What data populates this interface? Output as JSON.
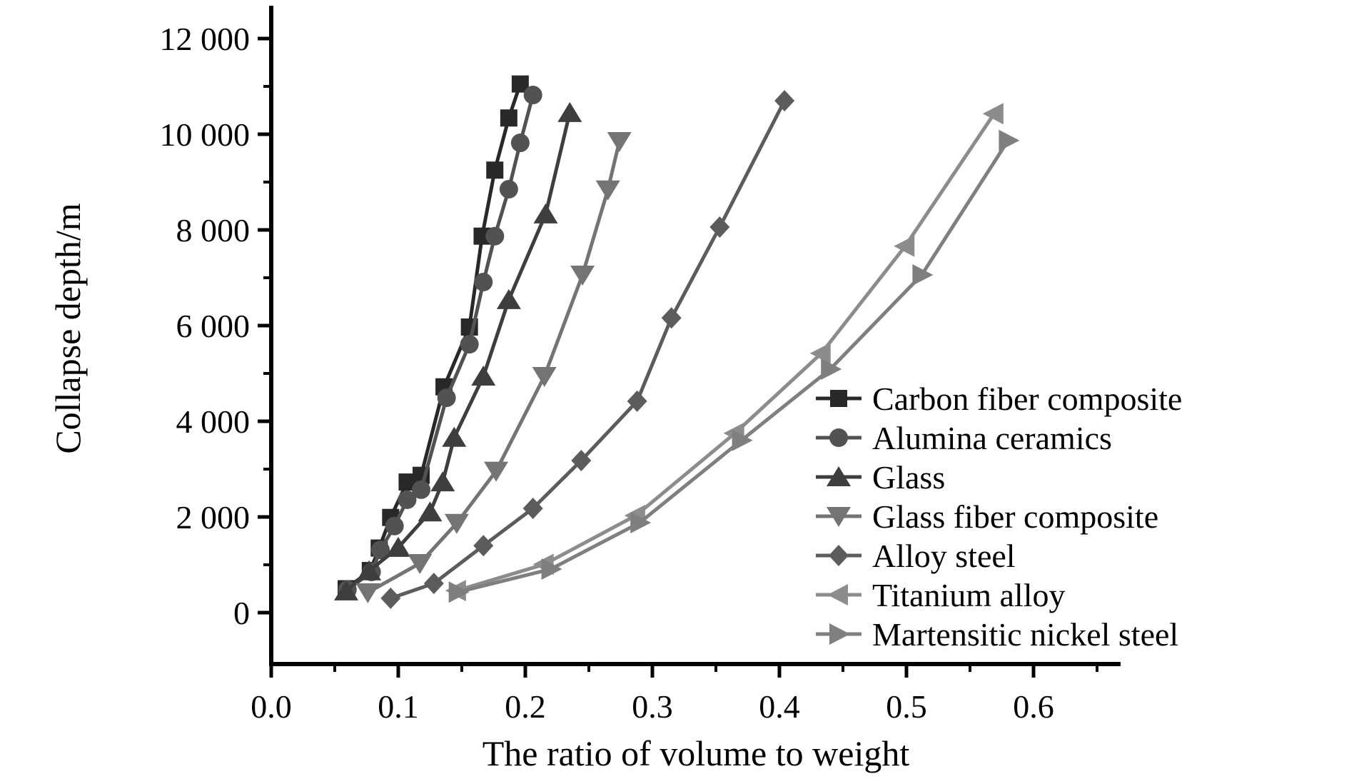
{
  "figure": {
    "background": "#ffffff",
    "axis_color": "#000000",
    "x_axis": {
      "title": "The ratio of volume to weight",
      "major_ticks": [
        0.0,
        0.1,
        0.2,
        0.3,
        0.4,
        0.5,
        0.6
      ],
      "tick_labels": [
        "0.0",
        "0.1",
        "0.2",
        "0.3",
        "0.4",
        "0.5",
        "0.6"
      ],
      "minor_ticks": [
        0.05,
        0.15,
        0.25,
        0.35,
        0.45,
        0.55,
        0.65
      ]
    },
    "y_axis": {
      "title": "Collapse depth/m",
      "major_ticks": [
        0,
        2000,
        4000,
        6000,
        8000,
        10000,
        12000
      ],
      "tick_labels": [
        "0",
        "2 000",
        "4 000",
        "6 000",
        "8 000",
        "10 000",
        "12 000"
      ],
      "minor_ticks": [
        1000,
        3000,
        5000,
        7000,
        9000,
        11000
      ]
    }
  },
  "chart_data": {
    "type": "line",
    "title": "",
    "xlabel": "The ratio of volume to weight",
    "ylabel": "Collapse depth/m",
    "xlim": [
      0.0,
      0.668
    ],
    "ylim": [
      -1075,
      12700
    ],
    "grid": false,
    "legend_position": "inside-right-middle",
    "series": [
      {
        "name": "Carbon fiber composite",
        "marker": "square",
        "color": "#282828",
        "points": [
          [
            0.059,
            500
          ],
          [
            0.078,
            880
          ],
          [
            0.085,
            1350
          ],
          [
            0.094,
            1990
          ],
          [
            0.107,
            2730
          ],
          [
            0.118,
            2870
          ],
          [
            0.136,
            4720
          ],
          [
            0.156,
            5970
          ],
          [
            0.166,
            7870
          ],
          [
            0.176,
            9250
          ],
          [
            0.187,
            10340
          ],
          [
            0.196,
            11050
          ]
        ]
      },
      {
        "name": "Alumina ceramics",
        "marker": "circle",
        "color": "#525252",
        "points": [
          [
            0.06,
            480
          ],
          [
            0.079,
            850
          ],
          [
            0.086,
            1310
          ],
          [
            0.097,
            1810
          ],
          [
            0.107,
            2360
          ],
          [
            0.118,
            2570
          ],
          [
            0.138,
            4490
          ],
          [
            0.156,
            5610
          ],
          [
            0.167,
            6910
          ],
          [
            0.176,
            7870
          ],
          [
            0.187,
            8850
          ],
          [
            0.196,
            9820
          ],
          [
            0.206,
            10820
          ]
        ]
      },
      {
        "name": "Glass",
        "marker": "triangle-up",
        "color": "#3e3e3e",
        "points": [
          [
            0.059,
            450
          ],
          [
            0.077,
            870
          ],
          [
            0.1,
            1360
          ],
          [
            0.125,
            2100
          ],
          [
            0.135,
            2730
          ],
          [
            0.144,
            3660
          ],
          [
            0.167,
            4940
          ],
          [
            0.187,
            6540
          ],
          [
            0.216,
            8330
          ],
          [
            0.235,
            10450
          ]
        ]
      },
      {
        "name": "Glass fiber composite",
        "marker": "triangle-down",
        "color": "#747474",
        "points": [
          [
            0.076,
            420
          ],
          [
            0.117,
            1030
          ],
          [
            0.146,
            1870
          ],
          [
            0.177,
            2960
          ],
          [
            0.215,
            4940
          ],
          [
            0.245,
            7060
          ],
          [
            0.265,
            8840
          ],
          [
            0.274,
            9850
          ]
        ]
      },
      {
        "name": "Alloy steel",
        "marker": "diamond",
        "color": "#5c5c5c",
        "points": [
          [
            0.094,
            300
          ],
          [
            0.128,
            610
          ],
          [
            0.167,
            1400
          ],
          [
            0.206,
            2180
          ],
          [
            0.244,
            3180
          ],
          [
            0.288,
            4420
          ],
          [
            0.315,
            6160
          ],
          [
            0.353,
            8060
          ],
          [
            0.404,
            10700
          ]
        ]
      },
      {
        "name": "Titanium alloy",
        "marker": "triangle-left",
        "color": "#8c8c8c",
        "points": [
          [
            0.146,
            460
          ],
          [
            0.215,
            1010
          ],
          [
            0.287,
            2030
          ],
          [
            0.365,
            3750
          ],
          [
            0.433,
            5420
          ],
          [
            0.499,
            7660
          ],
          [
            0.569,
            10430
          ]
        ]
      },
      {
        "name": "Martensitic nickel steel",
        "marker": "triangle-right",
        "color": "#7f7f7f",
        "points": [
          [
            0.147,
            430
          ],
          [
            0.22,
            910
          ],
          [
            0.29,
            1880
          ],
          [
            0.37,
            3600
          ],
          [
            0.44,
            5090
          ],
          [
            0.512,
            7060
          ],
          [
            0.58,
            9870
          ]
        ]
      }
    ]
  }
}
